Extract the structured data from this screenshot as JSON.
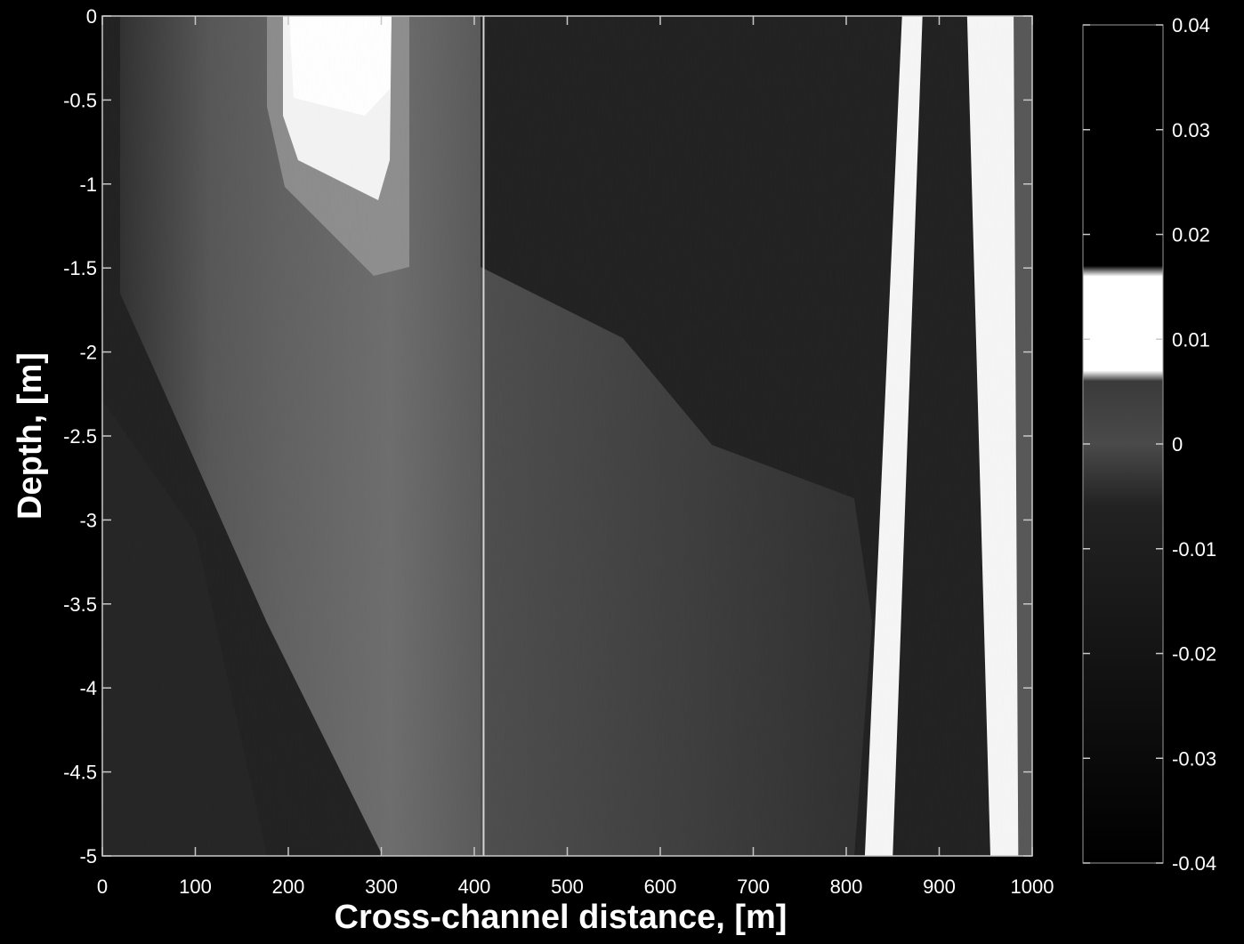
{
  "chart_data": {
    "type": "heatmap",
    "title": "",
    "xlabel": "Cross-channel distance, [m]",
    "ylabel": "Depth, [m]",
    "xlim": [
      0,
      1000
    ],
    "ylim": [
      -5,
      0
    ],
    "x_ticks": [
      0,
      100,
      200,
      300,
      400,
      500,
      600,
      700,
      800,
      900,
      1000
    ],
    "x_tick_labels": [
      "0",
      "100",
      "200",
      "300",
      "400",
      "500",
      "600",
      "700",
      "800",
      "900",
      "1000"
    ],
    "y_ticks": [
      0,
      -0.5,
      -1,
      -1.5,
      -2,
      -2.5,
      -3,
      -3.5,
      -4,
      -4.5,
      -5
    ],
    "y_tick_labels": [
      "0",
      "-0.5",
      "-1",
      "-1.5",
      "-2",
      "-2.5",
      "-3",
      "-3.5",
      "-4",
      "-4.5",
      "-5"
    ],
    "colorbar": {
      "range": [
        -0.04,
        0.04
      ],
      "ticks": [
        0.04,
        0.03,
        0.02,
        0.01,
        0,
        -0.01,
        -0.02,
        -0.03,
        -0.04
      ],
      "tick_labels": [
        "0.04",
        "0.03",
        "0.02",
        "0.01",
        "0",
        "-0.01",
        "-0.02",
        "-0.03",
        "-0.04"
      ],
      "colormap": [
        {
          "value": 0.04,
          "color": "#000000"
        },
        {
          "value": 0.017,
          "color": "#000000"
        },
        {
          "value": 0.016,
          "color": "#ffffff"
        },
        {
          "value": 0.007,
          "color": "#ffffff"
        },
        {
          "value": 0.006,
          "color": "#3a3a3a"
        },
        {
          "value": 0.0,
          "color": "#4a4a4a"
        },
        {
          "value": -0.006,
          "color": "#222222"
        },
        {
          "value": -0.04,
          "color": "#000000"
        }
      ]
    },
    "field_regions": [
      {
        "name": "background",
        "value": -0.03
      },
      {
        "name": "near-surface bright patch",
        "x_range": [
          195,
          330
        ],
        "depth_range": [
          0,
          -1.2
        ],
        "value": 0.012
      },
      {
        "name": "left-center gray band",
        "x_range": [
          0,
          420
        ],
        "depth_range": [
          0,
          -5
        ],
        "value": 0.002
      },
      {
        "name": "middle gray region",
        "x_range": [
          420,
          820
        ],
        "depth_range": [
          -1.5,
          -5
        ],
        "value": -0.005
      },
      {
        "name": "bright diagonal band 1",
        "x_top": [
          860,
          882
        ],
        "x_bottom": [
          820,
          850
        ],
        "value": 0.012
      },
      {
        "name": "bright diagonal band 2",
        "x_top": [
          930,
          980
        ],
        "x_bottom": [
          955,
          985
        ],
        "value": 0.012
      },
      {
        "name": "vertical line",
        "x": 410,
        "value": 0.01
      }
    ]
  }
}
